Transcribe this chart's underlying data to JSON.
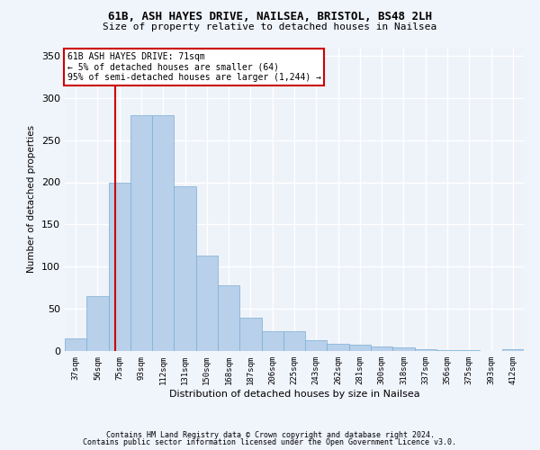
{
  "title_line1": "61B, ASH HAYES DRIVE, NAILSEA, BRISTOL, BS48 2LH",
  "title_line2": "Size of property relative to detached houses in Nailsea",
  "xlabel": "Distribution of detached houses by size in Nailsea",
  "ylabel": "Number of detached properties",
  "categories": [
    "37sqm",
    "56sqm",
    "75sqm",
    "93sqm",
    "112sqm",
    "131sqm",
    "150sqm",
    "168sqm",
    "187sqm",
    "206sqm",
    "225sqm",
    "243sqm",
    "262sqm",
    "281sqm",
    "300sqm",
    "318sqm",
    "337sqm",
    "356sqm",
    "375sqm",
    "393sqm",
    "412sqm"
  ],
  "values": [
    15,
    65,
    200,
    280,
    280,
    195,
    113,
    78,
    40,
    23,
    23,
    13,
    9,
    8,
    5,
    4,
    2,
    1,
    1,
    0,
    2
  ],
  "bar_color": "#b8d0ea",
  "bar_edge_color": "#7aafd4",
  "background_color": "#eef2f9",
  "grid_color": "#ffffff",
  "annotation_text": "61B ASH HAYES DRIVE: 71sqm\n← 5% of detached houses are smaller (64)\n95% of semi-detached houses are larger (1,244) →",
  "annotation_box_color": "#ffffff",
  "annotation_box_edge": "#cc0000",
  "ylim": [
    0,
    360
  ],
  "yticks": [
    0,
    50,
    100,
    150,
    200,
    250,
    300,
    350
  ],
  "footer_line1": "Contains HM Land Registry data © Crown copyright and database right 2024.",
  "footer_line2": "Contains public sector information licensed under the Open Government Licence v3.0."
}
